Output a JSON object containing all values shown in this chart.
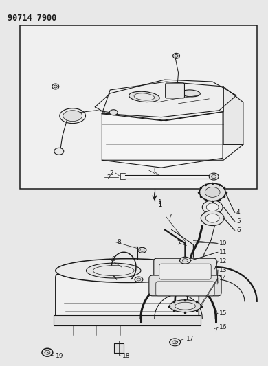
{
  "title": "90714 7900",
  "bg": "#e8e8e8",
  "lc": "#1a1a1a",
  "fc": "#ffffff",
  "title_fs": 8.5,
  "label_fs": 6.5,
  "figsize": [
    3.9,
    5.33
  ],
  "dpi": 100
}
